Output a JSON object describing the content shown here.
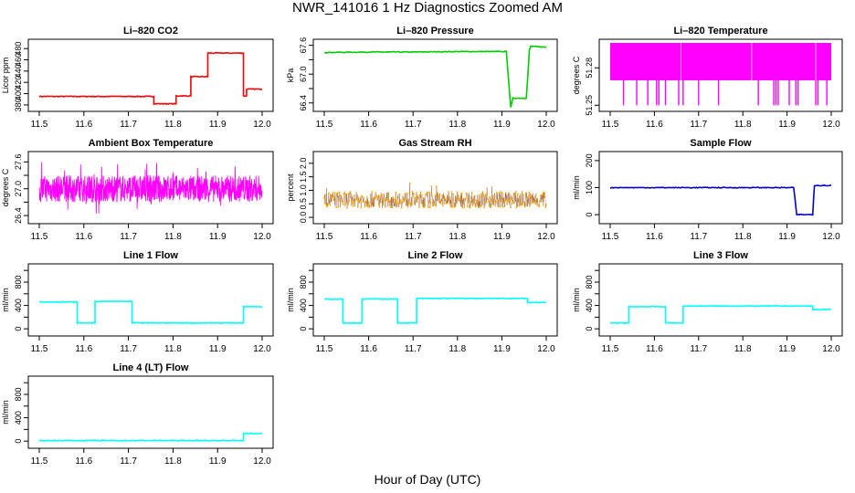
{
  "title": "NWR_141016  1 Hz Diagnostics Zoomed AM",
  "xlabel": "Hour of Day (UTC)",
  "colors": {
    "co2": "#ff0000",
    "pressure": "#00cc00",
    "temperature": "#ff00ff",
    "rh": "#ffa500",
    "rh_line": "#8b4513",
    "sample_flow": "#0000cd",
    "line_flow": "#00ffff"
  },
  "chart_data": [
    {
      "type": "line",
      "title": "Li–820 CO2",
      "ylabel": "Licor ppm",
      "xlim": [
        11.5,
        12.0
      ],
      "ylim": [
        375,
        490
      ],
      "yticks": [
        380,
        400,
        420,
        440,
        460,
        480
      ],
      "xticks": [
        11.5,
        11.6,
        11.7,
        11.8,
        11.9,
        12.0
      ],
      "color": "#ff0000",
      "series": [
        {
          "x": [
            11.5,
            11.757,
            11.757,
            11.807,
            11.807,
            11.84,
            11.84,
            11.878,
            11.878,
            11.958,
            11.958,
            11.965,
            11.965,
            12.0
          ],
          "y": [
            395,
            395,
            382,
            382,
            396,
            396,
            430,
            430,
            472,
            472,
            396,
            396,
            408,
            408
          ]
        }
      ]
    },
    {
      "type": "line",
      "title": "Li–820 Pressure",
      "ylabel": "kPa",
      "xlim": [
        11.5,
        12.0
      ],
      "ylim": [
        66.3,
        67.65
      ],
      "yticks": [
        66.4,
        67.0,
        67.6
      ],
      "extra_yticks": [
        66.7,
        67.3
      ],
      "xticks": [
        11.5,
        11.6,
        11.7,
        11.8,
        11.9,
        12.0
      ],
      "color": "#00cc00",
      "series": [
        {
          "x": [
            11.5,
            11.6,
            11.7,
            11.8,
            11.91,
            11.915,
            11.92,
            11.925,
            11.93,
            11.955,
            11.958,
            11.962,
            11.965,
            12.0
          ],
          "y": [
            67.45,
            67.46,
            67.46,
            67.47,
            67.47,
            66.9,
            66.3,
            66.5,
            66.5,
            66.5,
            66.9,
            67.5,
            67.58,
            67.56
          ]
        }
      ]
    },
    {
      "type": "line",
      "title": "Li–820 Temperature",
      "ylabel": "degrees C",
      "xlim": [
        11.5,
        12.0
      ],
      "ylim": [
        51.248,
        51.3
      ],
      "yticks": [
        51.25,
        51.28
      ],
      "xticks": [
        11.5,
        11.6,
        11.7,
        11.8,
        11.9,
        12.0
      ],
      "color": "#ff00ff",
      "series": [
        {
          "name": "",
          "band": [
            51.27,
            51.3
          ],
          "dips_to": 51.25,
          "dips_x": [
            11.53,
            11.56,
            11.585,
            11.605,
            11.61,
            11.625,
            11.655,
            11.665,
            11.7,
            11.745,
            11.835,
            11.87,
            11.875,
            11.88,
            11.905,
            11.92,
            11.925,
            11.965,
            11.97,
            11.99
          ]
        }
      ]
    },
    {
      "type": "line",
      "title": "Ambient Box Temperature",
      "ylabel": "degrees C",
      "xlim": [
        11.5,
        12.0
      ],
      "ylim": [
        26.3,
        27.75
      ],
      "yticks": [
        26.4,
        27.0,
        27.6
      ],
      "extra_yticks": [
        26.7,
        27.3
      ],
      "xticks": [
        11.5,
        11.6,
        11.7,
        11.8,
        11.9,
        12.0
      ],
      "color": "#ff00ff",
      "series": [
        {
          "mean": 27.0,
          "spread": 0.3,
          "noise": "high"
        }
      ]
    },
    {
      "type": "scatter",
      "title": "Gas Stream RH",
      "ylabel": "percent",
      "xlim": [
        11.5,
        12.0
      ],
      "ylim": [
        -0.1,
        2.3
      ],
      "yticks": [
        0.0,
        0.5,
        1.0,
        1.5,
        2.0
      ],
      "xticks": [
        11.5,
        11.6,
        11.7,
        11.8,
        11.9,
        12.0
      ],
      "color": "#ffa500",
      "series": [
        {
          "mean": 0.65,
          "spread": 0.3,
          "noise": "points"
        }
      ]
    },
    {
      "type": "line",
      "title": "Sample Flow",
      "ylabel": "ml/min",
      "xlim": [
        11.5,
        12.0
      ],
      "ylim": [
        -20,
        220
      ],
      "yticks": [
        0,
        100,
        200
      ],
      "xticks": [
        11.5,
        11.6,
        11.7,
        11.8,
        11.9,
        12.0
      ],
      "color": "#0000cd",
      "series": [
        {
          "x": [
            11.5,
            11.915,
            11.922,
            11.958,
            11.962,
            12.0
          ],
          "y": [
            100,
            100,
            0,
            0,
            108,
            108
          ]
        }
      ]
    },
    {
      "type": "line",
      "title": "Line 1 Flow",
      "ylabel": "ml/min",
      "xlim": [
        11.5,
        12.0
      ],
      "ylim": [
        -60,
        1050
      ],
      "yticks": [
        0,
        400,
        800
      ],
      "extra_yticks": [
        200,
        600,
        1000
      ],
      "xticks": [
        11.5,
        11.6,
        11.7,
        11.8,
        11.9,
        12.0
      ],
      "color": "#00ffff",
      "series": [
        {
          "x": [
            11.5,
            11.585,
            11.585,
            11.625,
            11.625,
            11.708,
            11.708,
            11.958,
            11.958,
            12.0
          ],
          "y": [
            460,
            460,
            100,
            100,
            470,
            470,
            100,
            100,
            380,
            380
          ]
        }
      ]
    },
    {
      "type": "line",
      "title": "Line 2 Flow",
      "ylabel": "ml/min",
      "xlim": [
        11.5,
        12.0
      ],
      "ylim": [
        -60,
        1050
      ],
      "yticks": [
        0,
        400,
        800
      ],
      "extra_yticks": [
        200,
        600,
        1000
      ],
      "xticks": [
        11.5,
        11.6,
        11.7,
        11.8,
        11.9,
        12.0
      ],
      "color": "#00ffff",
      "series": [
        {
          "x": [
            11.5,
            11.542,
            11.542,
            11.585,
            11.585,
            11.665,
            11.665,
            11.708,
            11.708,
            11.958,
            11.958,
            12.0
          ],
          "y": [
            510,
            510,
            100,
            100,
            510,
            510,
            100,
            100,
            520,
            520,
            450,
            450
          ]
        }
      ]
    },
    {
      "type": "line",
      "title": "Line 3 Flow",
      "ylabel": "ml/min",
      "xlim": [
        11.5,
        12.0
      ],
      "ylim": [
        -60,
        1050
      ],
      "yticks": [
        0,
        400,
        800
      ],
      "extra_yticks": [
        200,
        600,
        1000
      ],
      "xticks": [
        11.5,
        11.6,
        11.7,
        11.8,
        11.9,
        12.0
      ],
      "color": "#00ffff",
      "series": [
        {
          "x": [
            11.5,
            11.542,
            11.542,
            11.625,
            11.625,
            11.665,
            11.665,
            11.958,
            11.958,
            12.0
          ],
          "y": [
            100,
            100,
            380,
            380,
            100,
            100,
            390,
            390,
            330,
            330
          ]
        }
      ]
    },
    {
      "type": "line",
      "title": "Line 4 (LT) Flow",
      "ylabel": "ml/min",
      "xlim": [
        11.5,
        12.0
      ],
      "ylim": [
        -60,
        1050
      ],
      "yticks": [
        0,
        400,
        800
      ],
      "extra_yticks": [
        200,
        600,
        1000
      ],
      "xticks": [
        11.5,
        11.6,
        11.7,
        11.8,
        11.9,
        12.0
      ],
      "color": "#00ffff",
      "series": [
        {
          "x": [
            11.5,
            11.958,
            11.958,
            12.0
          ],
          "y": [
            10,
            10,
            130,
            130
          ]
        }
      ]
    }
  ]
}
